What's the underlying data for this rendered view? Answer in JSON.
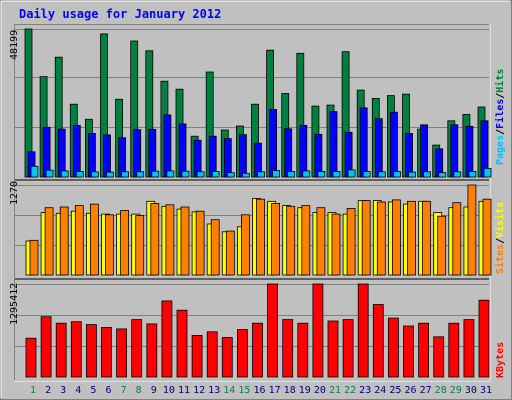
{
  "title": "Daily usage for January 2012",
  "colors": {
    "background": "#c0c0c0",
    "title": "#0000ff",
    "pages": "#00c0ff",
    "files": "#0000ff",
    "hits": "#008040",
    "visits": "#ffff00",
    "sites": "#ff8000",
    "kbytes": "#ff0000",
    "weekend_day": "#00805c",
    "weekday": "#000080",
    "separator": "#000000"
  },
  "chart_data": [
    {
      "type": "bar",
      "name": "hits-files-pages",
      "ymax_label": "48199",
      "ylim": [
        0,
        48199
      ],
      "legend": [
        "Pages",
        "/",
        "Files",
        "/",
        "Hits"
      ],
      "categories": [
        "1",
        "2",
        "3",
        "4",
        "5",
        "6",
        "7",
        "8",
        "9",
        "10",
        "11",
        "12",
        "13",
        "14",
        "15",
        "16",
        "17",
        "18",
        "19",
        "20",
        "21",
        "22",
        "23",
        "24",
        "25",
        "26",
        "27",
        "28",
        "29",
        "30",
        "31"
      ],
      "series": [
        {
          "name": "Hits",
          "values": [
            48199,
            32700,
            39000,
            23700,
            18800,
            46600,
            25300,
            44300,
            41100,
            31200,
            28600,
            13300,
            34200,
            15300,
            16600,
            23700,
            41300,
            27200,
            40300,
            23100,
            23400,
            40800,
            28300,
            25600,
            26500,
            27000,
            15600,
            10400,
            18300,
            20400,
            22800
          ]
        },
        {
          "name": "Files",
          "values": [
            8200,
            16200,
            15600,
            16800,
            14200,
            13700,
            12800,
            15400,
            15500,
            20200,
            17300,
            12000,
            13300,
            12500,
            13800,
            11000,
            22000,
            15700,
            16800,
            13900,
            21300,
            14600,
            22500,
            19000,
            21100,
            14200,
            17000,
            9200,
            17000,
            16500,
            18300
          ]
        },
        {
          "name": "Pages",
          "values": [
            3500,
            2200,
            2000,
            1800,
            1700,
            1600,
            1700,
            1700,
            1900,
            2000,
            1900,
            1700,
            1800,
            1400,
            1200,
            1700,
            2100,
            1800,
            2000,
            1800,
            1800,
            2300,
            1800,
            1700,
            1800,
            1600,
            1700,
            1400,
            1700,
            1800,
            2800
          ]
        }
      ]
    },
    {
      "type": "bar",
      "name": "visits-sites",
      "ymax_label": "1270",
      "ylim": [
        0,
        1270
      ],
      "legend": [
        "Sites",
        "/",
        "Visits"
      ],
      "categories": [
        "1",
        "2",
        "3",
        "4",
        "5",
        "6",
        "7",
        "8",
        "9",
        "10",
        "11",
        "12",
        "13",
        "14",
        "15",
        "16",
        "17",
        "18",
        "19",
        "20",
        "21",
        "22",
        "23",
        "24",
        "25",
        "26",
        "27",
        "28",
        "29",
        "30",
        "31"
      ],
      "series": [
        {
          "name": "Visits",
          "values": [
            480,
            880,
            870,
            900,
            870,
            860,
            860,
            860,
            1040,
            970,
            930,
            890,
            720,
            610,
            680,
            1080,
            1040,
            980,
            950,
            880,
            880,
            860,
            1050,
            1050,
            1030,
            1000,
            1040,
            880,
            950,
            960,
            1040
          ]
        },
        {
          "name": "Sites",
          "values": [
            490,
            950,
            960,
            980,
            1000,
            850,
            910,
            840,
            1010,
            990,
            960,
            900,
            780,
            620,
            850,
            1070,
            1010,
            970,
            980,
            950,
            860,
            940,
            1050,
            1030,
            1060,
            1040,
            1040,
            830,
            1020,
            1270,
            1070
          ]
        }
      ]
    },
    {
      "type": "bar",
      "name": "kbytes",
      "ymax_label": "1295412",
      "ylim": [
        0,
        1295412
      ],
      "legend": [
        "KBytes"
      ],
      "categories": [
        "1",
        "2",
        "3",
        "4",
        "5",
        "6",
        "7",
        "8",
        "9",
        "10",
        "11",
        "12",
        "13",
        "14",
        "15",
        "16",
        "17",
        "18",
        "19",
        "20",
        "21",
        "22",
        "23",
        "24",
        "25",
        "26",
        "27",
        "28",
        "29",
        "30",
        "31"
      ],
      "series": [
        {
          "name": "KBytes",
          "values": [
            540000,
            840000,
            750000,
            770000,
            730000,
            690000,
            670000,
            800000,
            740000,
            1060000,
            930000,
            580000,
            630000,
            550000,
            660000,
            750000,
            1295412,
            800000,
            750000,
            1295412,
            780000,
            800000,
            1295412,
            1010000,
            820000,
            710000,
            750000,
            560000,
            750000,
            800000,
            1070000
          ]
        }
      ]
    }
  ],
  "weekend_days": [
    "1",
    "7",
    "8",
    "14",
    "15",
    "21",
    "22",
    "28",
    "29"
  ]
}
